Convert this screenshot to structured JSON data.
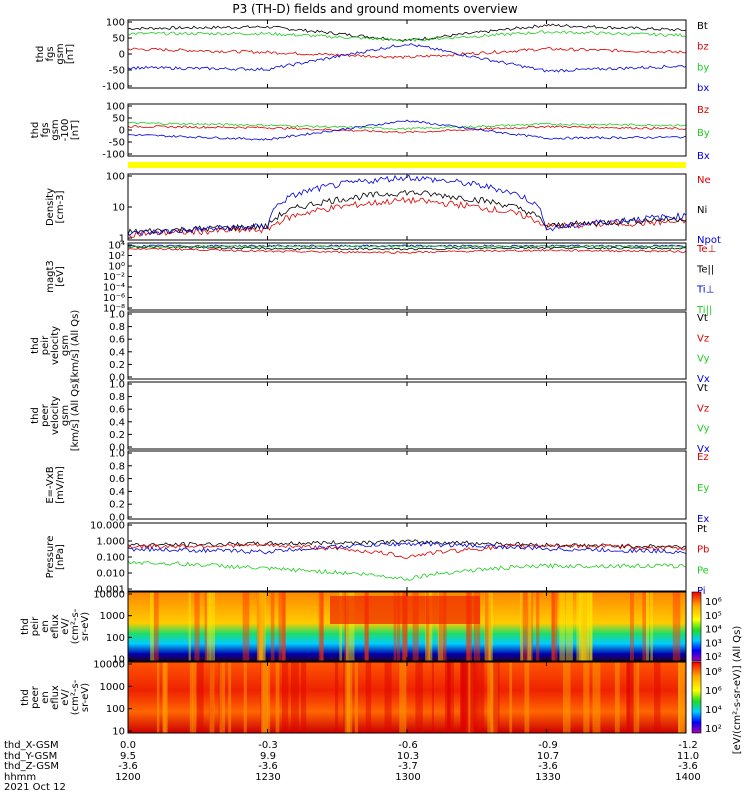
{
  "title": "P3 (TH-D) fields and ground moments overview",
  "colors": {
    "black": "#000000",
    "red": "#dd0000",
    "green": "#22cc22",
    "blue": "#0000dd",
    "yellow": "#ffff00"
  },
  "x_ticks": [
    "",
    "",
    "",
    "",
    ""
  ],
  "panels": [
    {
      "id": "fgs",
      "ylabel": [
        "thd",
        "fgs",
        "gsm",
        "[nT]"
      ],
      "yticks": [
        "100",
        "50",
        "0",
        "-50",
        "-100"
      ],
      "legend": [
        {
          "text": "Bt",
          "color": "black"
        },
        {
          "text": "bz",
          "color": "red"
        },
        {
          "text": "by",
          "color": "green"
        },
        {
          "text": "bx",
          "color": "blue"
        }
      ]
    },
    {
      "id": "fgs2",
      "ylabel": [
        "thd",
        "fgs",
        "gsm",
        "-100",
        "[nT]"
      ],
      "yticks": [
        "100",
        "50",
        "0",
        "-50",
        "-100"
      ],
      "legend": [
        {
          "text": "Bz",
          "color": "red"
        },
        {
          "text": "By",
          "color": "green"
        },
        {
          "text": "Bx",
          "color": "blue"
        }
      ]
    },
    {
      "id": "density",
      "ylabel": [
        "Density",
        "[cm-3]"
      ],
      "yticks": [
        "100",
        "10",
        "1"
      ],
      "legend": [
        {
          "text": "Ne",
          "color": "red"
        },
        {
          "text": "Ni",
          "color": "black"
        },
        {
          "text": "Npot",
          "color": "blue"
        }
      ]
    },
    {
      "id": "temp",
      "ylabel": [
        "magt3",
        "[eV]"
      ],
      "yticks": [
        "10⁴",
        "10²",
        "10⁰",
        "10⁻²",
        "10⁻⁴",
        "10⁻⁶",
        "10⁻⁸"
      ],
      "legend": [
        {
          "text": "Te⊥",
          "color": "red"
        },
        {
          "text": "Te||",
          "color": "black"
        },
        {
          "text": "Ti⊥",
          "color": "blue"
        },
        {
          "text": "Ti||",
          "color": "green"
        }
      ]
    },
    {
      "id": "peir_vel",
      "ylabel": [
        "thd",
        "peir",
        "velocity",
        "gsm",
        "[km/s] (All Qs)"
      ],
      "yticks": [
        "1.0",
        "0.8",
        "0.6",
        "0.4",
        "0.2",
        "0.0"
      ],
      "legend": [
        {
          "text": "Vt",
          "color": "black"
        },
        {
          "text": "Vz",
          "color": "red"
        },
        {
          "text": "Vy",
          "color": "green"
        },
        {
          "text": "Vx",
          "color": "blue"
        }
      ]
    },
    {
      "id": "peer_vel",
      "ylabel": [
        "thd",
        "peer",
        "velocity",
        "gsm",
        "[km/s] (All Qs)"
      ],
      "yticks": [
        "1.0",
        "0.8",
        "0.6",
        "0.4",
        "0.2",
        "0.0"
      ],
      "legend": [
        {
          "text": "Vt",
          "color": "black"
        },
        {
          "text": "Vz",
          "color": "red"
        },
        {
          "text": "Vy",
          "color": "green"
        },
        {
          "text": "Vx",
          "color": "blue"
        }
      ]
    },
    {
      "id": "efield",
      "ylabel": [
        "E=-VxB",
        "[mV/m]"
      ],
      "yticks": [
        "1.0",
        "0.8",
        "0.6",
        "0.4",
        "0.2",
        "0.0"
      ],
      "legend": [
        {
          "text": "Ez",
          "color": "red"
        },
        {
          "text": "Ey",
          "color": "green"
        },
        {
          "text": "Ex",
          "color": "blue"
        }
      ]
    },
    {
      "id": "pressure",
      "ylabel": [
        "Pressure",
        "[nPa]"
      ],
      "yticks": [
        "10.000",
        "1.000",
        "0.100",
        "0.010",
        "0.001"
      ],
      "legend": [
        {
          "text": "Pt",
          "color": "black"
        },
        {
          "text": "Pb",
          "color": "red"
        },
        {
          "text": "Pe",
          "color": "green"
        },
        {
          "text": "Pi",
          "color": "blue"
        }
      ]
    },
    {
      "id": "peir_spec",
      "ylabel": [
        "thd",
        "peir",
        "en",
        "eflux",
        "eV/",
        "(cm²-s-",
        "sr-eV)"
      ],
      "yticks": [
        "10000",
        "1000",
        "100",
        "10"
      ],
      "cbar": [
        "10⁶",
        "10⁵",
        "10⁴",
        "10³",
        "10²"
      ]
    },
    {
      "id": "peer_spec",
      "ylabel": [
        "thd",
        "peer",
        "en",
        "eflux",
        "eV/",
        "(cm²-s-",
        "sr-eV)"
      ],
      "yticks": [
        "10000",
        "1000",
        "100",
        "10"
      ],
      "cbar": [
        "10⁸",
        "10⁶",
        "10⁴",
        "10²"
      ]
    }
  ],
  "colorbar_label": "[eV/(cm²-s-sr-eV)] (All Qs)",
  "footer": {
    "rows": [
      {
        "label": "thd_X-GSM",
        "values": [
          "0.0",
          "-0.3",
          "-0.6",
          "-0.9",
          "-1.2"
        ]
      },
      {
        "label": "thd_Y-GSM",
        "values": [
          "9.5",
          "9.9",
          "10.3",
          "10.7",
          "11.0"
        ]
      },
      {
        "label": "thd_Z-GSM",
        "values": [
          "-3.6",
          "-3.6",
          "-3.7",
          "-3.6",
          "-3.6"
        ]
      },
      {
        "label": "hhmm",
        "values": [
          "1200",
          "1230",
          "1300",
          "1330",
          "1400"
        ]
      }
    ],
    "date": "2021 Oct 12"
  },
  "chart_data": {
    "type": "line",
    "title": "P3 (TH-D) fields and ground moments overview",
    "x": [
      "1200",
      "1230",
      "1300",
      "1330",
      "1400"
    ],
    "x_label": "hhmm",
    "date": "2021 Oct 12",
    "panels": [
      {
        "name": "thd fgs gsm [nT]",
        "ylim": [
          -100,
          100
        ],
        "series": [
          {
            "name": "Bt",
            "values": [
              75,
              80,
              40,
              85,
              70
            ]
          },
          {
            "name": "bz",
            "values": [
              15,
              5,
              -10,
              15,
              5
            ]
          },
          {
            "name": "by",
            "values": [
              60,
              60,
              40,
              65,
              55
            ]
          },
          {
            "name": "bx",
            "values": [
              -40,
              -45,
              30,
              -50,
              -35
            ]
          }
        ]
      },
      {
        "name": "thd fgs gsm [nT]",
        "ylim": [
          -120,
          100
        ],
        "series": [
          {
            "name": "Bz",
            "values": [
              5,
              0,
              -20,
              5,
              -5
            ]
          },
          {
            "name": "By",
            "values": [
              20,
              10,
              -5,
              15,
              10
            ]
          },
          {
            "name": "Bx",
            "values": [
              -30,
              -50,
              30,
              -45,
              -40
            ]
          }
        ]
      },
      {
        "name": "Density [cm-3]",
        "yscale": "log",
        "ylim": [
          0.6,
          200
        ],
        "series": [
          {
            "name": "Ne",
            "values": [
              1,
              1.5,
              20,
              2,
              3
            ]
          },
          {
            "name": "Ni",
            "values": [
              1.2,
              2,
              40,
              2,
              4
            ]
          },
          {
            "name": "Npot",
            "values": [
              1,
              2,
              150,
              1.5,
              5
            ]
          }
        ]
      },
      {
        "name": "magt3 [eV]",
        "yscale": "log",
        "ylim": [
          1e-08,
          10000.0
        ],
        "series": [
          {
            "name": "Te⊥",
            "values": [
              1000,
              300,
              200,
              500,
              300
            ]
          },
          {
            "name": "Te||",
            "values": [
              2000,
              1000,
              800,
              1500,
              1000
            ]
          },
          {
            "name": "Ti⊥",
            "values": [
              3000,
              3000,
              3000,
              3000,
              3000
            ]
          },
          {
            "name": "Ti||",
            "values": [
              2500,
              2500,
              2500,
              2500,
              2500
            ]
          }
        ]
      },
      {
        "name": "thd peir velocity gsm [km/s] (All Qs)",
        "ylim": [
          0,
          1
        ],
        "series": []
      },
      {
        "name": "thd peer velocity gsm [km/s] (All Qs)",
        "ylim": [
          0,
          1
        ],
        "series": []
      },
      {
        "name": "E=-VxB [mV/m]",
        "ylim": [
          0,
          1
        ],
        "series": []
      },
      {
        "name": "Pressure [nPa]",
        "yscale": "log",
        "ylim": [
          0.001,
          10
        ],
        "series": [
          {
            "name": "Pt",
            "values": [
              0.5,
              0.6,
              0.8,
              0.5,
              0.4
            ]
          },
          {
            "name": "Pb",
            "values": [
              0.4,
              0.5,
              0.1,
              0.5,
              0.3
            ]
          },
          {
            "name": "Pe",
            "values": [
              0.05,
              0.02,
              0.005,
              0.03,
              0.03
            ]
          },
          {
            "name": "Pi",
            "values": [
              0.3,
              0.2,
              0.6,
              0.3,
              0.2
            ]
          }
        ]
      },
      {
        "name": "thd peir en eflux",
        "type": "heatmap",
        "yscale": "log",
        "ylim": [
          5,
          20000
        ]
      },
      {
        "name": "thd peer en eflux",
        "type": "heatmap",
        "yscale": "log",
        "ylim": [
          5,
          20000
        ]
      }
    ]
  }
}
